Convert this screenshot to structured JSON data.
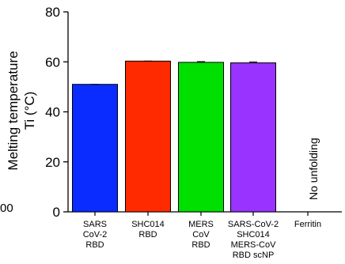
{
  "chart_data": {
    "type": "bar",
    "categories": [
      [
        "SARS",
        "CoV-2",
        "RBD"
      ],
      [
        "SHC014",
        "RBD"
      ],
      [
        "MERS",
        "CoV",
        "RBD"
      ],
      [
        "SARS-CoV-2",
        "SHC014",
        "MERS-CoV",
        "RBD scNP"
      ],
      [
        "Ferritin"
      ]
    ],
    "values": [
      51,
      60.3,
      59.8,
      59.6,
      null
    ],
    "errors": [
      0,
      0,
      0.3,
      0.4,
      0
    ],
    "colors": [
      "#0a2cff",
      "#ff2a00",
      "#00e000",
      "#9933ff",
      "#ffffff"
    ],
    "ylabel": [
      "Melting temperature",
      "Ti (°C)"
    ],
    "ylim": [
      0,
      80
    ],
    "yticks": [
      "0",
      "20",
      "40",
      "60",
      "80"
    ],
    "annotation": "No unfolding",
    "edge_label": "00",
    "grid": false
  }
}
